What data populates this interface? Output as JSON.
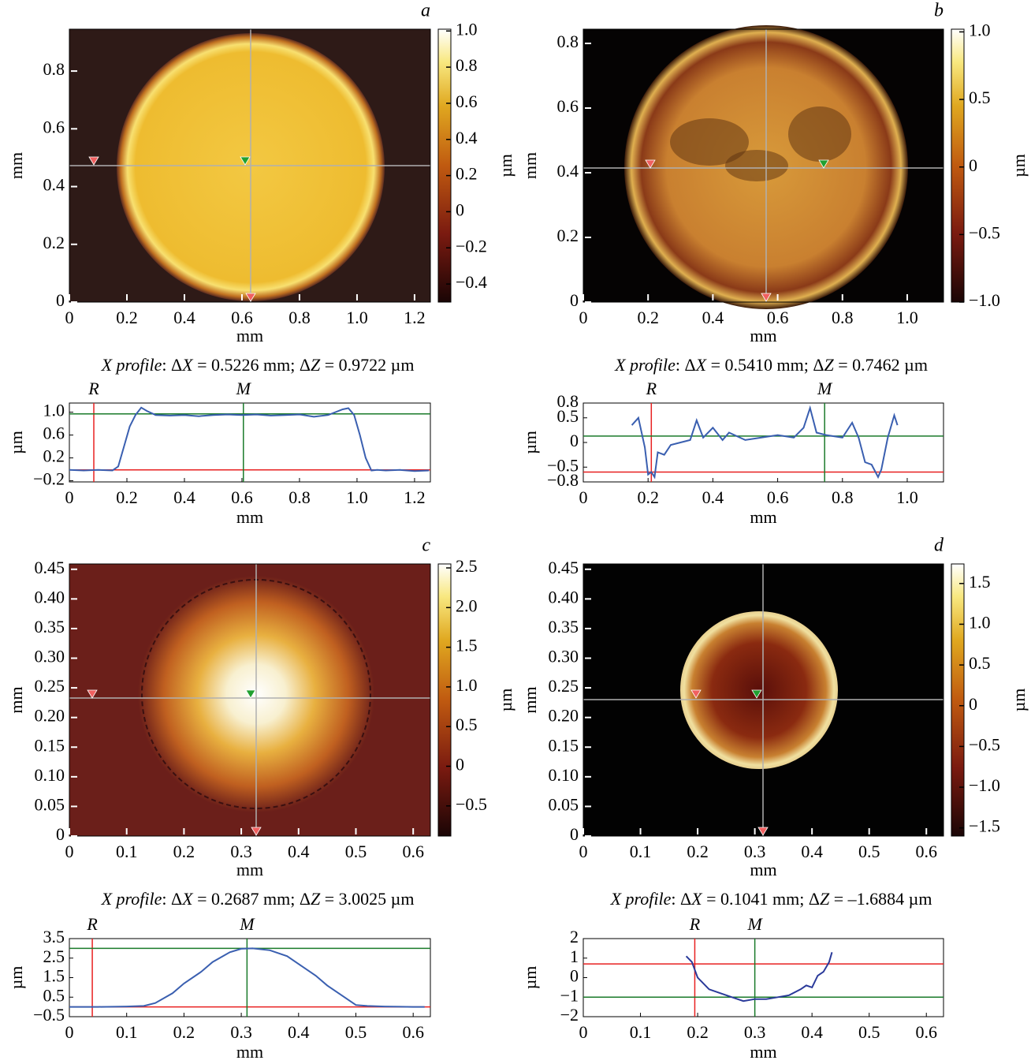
{
  "panels": [
    {
      "letter": "a",
      "map": {
        "xlim": [
          0,
          1.255
        ],
        "ylim": [
          0,
          0.945
        ],
        "xticks": [
          0,
          0.2,
          0.4,
          0.6,
          0.8,
          {
            "value": 1,
            "label": "1.0"
          },
          1.2
        ],
        "yticks": [
          0,
          0.2,
          0.4,
          0.6,
          0.8
        ],
        "xlabel": "mm",
        "ylabel": "mm"
      },
      "colorbar": {
        "clim": [
          -0.5,
          1.01
        ],
        "ticks": [
          {
            "value": 1,
            "label": "1.0"
          },
          0.8,
          0.6,
          0.4,
          0.2,
          0,
          {
            "value": -0.2,
            "label": "−0.2"
          },
          {
            "value": -0.4,
            "label": "−0.4"
          }
        ],
        "label": "µm"
      },
      "caption": [
        "X profile",
        ": Δ",
        "X",
        " = 0.5226 mm; Δ",
        "Z",
        " = 0.9722 µm"
      ],
      "profile": {
        "type": "line",
        "color": "#3a5fb0",
        "xlim": [
          0,
          1.255
        ],
        "ylim": [
          -0.22,
          1.16
        ],
        "xticks": [
          0,
          0.2,
          0.4,
          0.6,
          0.8,
          {
            "value": 1,
            "label": "1.0"
          },
          1.2
        ],
        "yticks": [
          {
            "value": 1,
            "label": "1.0"
          },
          0.6,
          0.2,
          {
            "value": -0.2,
            "label": "−0.2"
          }
        ],
        "xlabel": "mm",
        "ylabel": "µm",
        "x": [
          0,
          0.05,
          0.1,
          0.15,
          0.17,
          0.19,
          0.21,
          0.23,
          0.25,
          0.27,
          0.3,
          0.35,
          0.4,
          0.45,
          0.5,
          0.55,
          0.6,
          0.65,
          0.7,
          0.75,
          0.8,
          0.85,
          0.9,
          0.95,
          0.97,
          0.99,
          1.01,
          1.03,
          1.05,
          1.07,
          1.1,
          1.15,
          1.2,
          1.25
        ],
        "values": [
          -0.01,
          -0.02,
          -0.01,
          -0.02,
          0.05,
          0.4,
          0.75,
          0.95,
          1.08,
          1.02,
          0.95,
          0.94,
          0.95,
          0.93,
          0.95,
          0.96,
          0.95,
          0.96,
          0.94,
          0.95,
          0.96,
          0.92,
          0.95,
          1.05,
          1.07,
          0.95,
          0.6,
          0.2,
          -0.02,
          -0.01,
          -0.02,
          -0.01,
          -0.03,
          -0.02
        ],
        "markers": [
          {
            "label": "R",
            "x": 0.085,
            "level": -0.01,
            "color": "#e82020"
          },
          {
            "label": "M",
            "x": 0.605,
            "level": 0.97,
            "color": "#1a7a2a"
          }
        ]
      }
    },
    {
      "letter": "b",
      "map": {
        "xlim": [
          0,
          1.112
        ],
        "ylim": [
          0,
          0.844
        ],
        "xticks": [
          0,
          0.2,
          0.4,
          0.6,
          0.8,
          {
            "value": 1,
            "label": "1.0"
          }
        ],
        "yticks": [
          0,
          0.2,
          0.4,
          0.6,
          0.8
        ],
        "xlabel": "mm",
        "ylabel": "mm"
      },
      "colorbar": {
        "clim": [
          -1,
          1.02
        ],
        "ticks": [
          {
            "value": 1,
            "label": "1.0"
          },
          0.5,
          0,
          {
            "value": -0.5,
            "label": "−0.5"
          },
          {
            "value": -1,
            "label": "−1.0"
          }
        ],
        "label": "µm"
      },
      "caption": [
        "X profile",
        ": Δ",
        "X",
        " = 0.5410 mm; Δ",
        "Z",
        " = 0.7462 µm"
      ],
      "profile": {
        "type": "line",
        "color": "#3a5fb0",
        "xlim": [
          0,
          1.112
        ],
        "ylim": [
          -0.8,
          0.8
        ],
        "xticks": [
          0,
          0.2,
          0.4,
          0.6,
          0.8,
          {
            "value": 1,
            "label": "1.0"
          }
        ],
        "yticks": [
          0.8,
          0.5,
          0,
          {
            "value": -0.5,
            "label": "−0.5"
          },
          {
            "value": -0.8,
            "label": "−0.8"
          }
        ],
        "xlabel": "mm",
        "ylabel": "µm",
        "x": [
          0.15,
          0.17,
          0.19,
          0.2,
          0.21,
          0.22,
          0.23,
          0.25,
          0.27,
          0.3,
          0.33,
          0.35,
          0.37,
          0.4,
          0.43,
          0.45,
          0.5,
          0.55,
          0.6,
          0.65,
          0.68,
          0.7,
          0.72,
          0.75,
          0.8,
          0.83,
          0.85,
          0.87,
          0.89,
          0.91,
          0.92,
          0.94,
          0.96,
          0.97
        ],
        "values": [
          0.35,
          0.5,
          -0.1,
          -0.65,
          -0.6,
          -0.7,
          -0.2,
          -0.25,
          -0.05,
          0,
          0.05,
          0.45,
          0.1,
          0.3,
          0.05,
          0.2,
          0.05,
          0.1,
          0.15,
          0.1,
          0.3,
          0.7,
          0.2,
          0.15,
          0.1,
          0.4,
          0.1,
          -0.4,
          -0.45,
          -0.7,
          -0.55,
          0.1,
          0.55,
          0.35
        ],
        "markers": [
          {
            "label": "R",
            "x": 0.21,
            "level": -0.6,
            "color": "#e82020"
          },
          {
            "label": "M",
            "x": 0.745,
            "level": 0.13,
            "color": "#1a7a2a"
          }
        ]
      }
    },
    {
      "letter": "c",
      "map": {
        "xlim": [
          0,
          0.63
        ],
        "ylim": [
          0,
          0.459
        ],
        "xticks": [
          0,
          0.1,
          0.2,
          0.3,
          0.4,
          0.5,
          0.6
        ],
        "yticks": [
          0,
          0.05,
          {
            "value": 0.1,
            "label": "0.10"
          },
          0.15,
          {
            "value": 0.2,
            "label": "0.20"
          },
          0.25,
          {
            "value": 0.3,
            "label": "0.30"
          },
          0.35,
          {
            "value": 0.4,
            "label": "0.40"
          },
          0.45
        ],
        "xlabel": "mm",
        "ylabel": "mm"
      },
      "colorbar": {
        "clim": [
          -0.88,
          2.55
        ],
        "ticks": [
          2.5,
          {
            "value": 2,
            "label": "2.0"
          },
          1.5,
          {
            "value": 1,
            "label": "1.0"
          },
          0.5,
          0,
          {
            "value": -0.5,
            "label": "−0.5"
          }
        ],
        "label": "µm"
      },
      "caption": [
        "X profile",
        ": Δ",
        "X",
        " = 0.2687 mm; Δ",
        "Z",
        " = 3.0025 µm"
      ],
      "profile": {
        "type": "line",
        "color": "#3a5fb0",
        "xlim": [
          0,
          0.63
        ],
        "ylim": [
          -0.5,
          3.5
        ],
        "xticks": [
          0,
          0.1,
          0.2,
          0.3,
          0.4,
          0.5,
          0.6
        ],
        "yticks": [
          3.5,
          2.5,
          1.5,
          0.5,
          {
            "value": -0.5,
            "label": "−0.5"
          }
        ],
        "xlabel": "mm",
        "ylabel": "µm",
        "x": [
          0,
          0.05,
          0.1,
          0.13,
          0.15,
          0.18,
          0.2,
          0.23,
          0.25,
          0.28,
          0.3,
          0.32,
          0.35,
          0.38,
          0.4,
          0.43,
          0.45,
          0.48,
          0.5,
          0.52,
          0.55,
          0.6,
          0.62
        ],
        "values": [
          0,
          0,
          0.02,
          0.05,
          0.2,
          0.7,
          1.2,
          1.8,
          2.3,
          2.8,
          2.98,
          3,
          2.9,
          2.6,
          2.2,
          1.6,
          1.1,
          0.5,
          0.1,
          0.05,
          0.02,
          0,
          0
        ],
        "markers": [
          {
            "label": "R",
            "x": 0.04,
            "level": 0,
            "color": "#e82020"
          },
          {
            "label": "M",
            "x": 0.31,
            "level": 3,
            "color": "#1a7a2a"
          }
        ]
      }
    },
    {
      "letter": "d",
      "map": {
        "xlim": [
          0,
          0.63
        ],
        "ylim": [
          0,
          0.459
        ],
        "xticks": [
          0,
          0.1,
          0.2,
          0.3,
          0.4,
          0.5,
          0.6
        ],
        "yticks": [
          0,
          0.05,
          {
            "value": 0.1,
            "label": "0.10"
          },
          0.15,
          {
            "value": 0.2,
            "label": "0.20"
          },
          0.25,
          {
            "value": 0.3,
            "label": "0.30"
          },
          0.35,
          {
            "value": 0.4,
            "label": "0.40"
          },
          0.45
        ],
        "xlabel": "mm",
        "ylabel": "mm"
      },
      "colorbar": {
        "clim": [
          -1.6,
          1.74
        ],
        "ticks": [
          1.5,
          {
            "value": 1,
            "label": "1.0"
          },
          0.5,
          0,
          {
            "value": -0.5,
            "label": "−0.5"
          },
          {
            "value": -1,
            "label": "−1.0"
          },
          {
            "value": -1.5,
            "label": "−1.5"
          }
        ],
        "label": "µm"
      },
      "caption": [
        "X profile",
        ": Δ",
        "X",
        " = 0.1041 mm; Δ",
        "Z",
        " = –1.6884 µm"
      ],
      "profile": {
        "type": "line",
        "color": "#2a3a9a",
        "xlim": [
          0,
          0.63
        ],
        "ylim": [
          -2,
          2
        ],
        "xticks": [
          0,
          0.1,
          0.2,
          0.3,
          0.4,
          0.5,
          0.6
        ],
        "yticks": [
          2,
          1,
          0,
          {
            "value": -1,
            "label": "−1"
          },
          {
            "value": -2,
            "label": "−2"
          }
        ],
        "xlabel": "mm",
        "ylabel": "µm",
        "x": [
          0.18,
          0.19,
          0.2,
          0.22,
          0.24,
          0.26,
          0.28,
          0.3,
          0.32,
          0.34,
          0.36,
          0.38,
          0.39,
          0.4,
          0.41,
          0.42,
          0.43,
          0.435
        ],
        "values": [
          1.1,
          0.8,
          0,
          -0.6,
          -0.8,
          -1,
          -1.2,
          -1.1,
          -1.1,
          -1,
          -0.9,
          -0.6,
          -0.4,
          -0.5,
          0.1,
          0.3,
          0.8,
          1.3
        ],
        "markers": [
          {
            "label": "R",
            "x": 0.195,
            "level": 0.7,
            "color": "#e82020"
          },
          {
            "label": "M",
            "x": 0.3,
            "level": -1,
            "color": "#1a7a2a"
          }
        ]
      }
    }
  ]
}
